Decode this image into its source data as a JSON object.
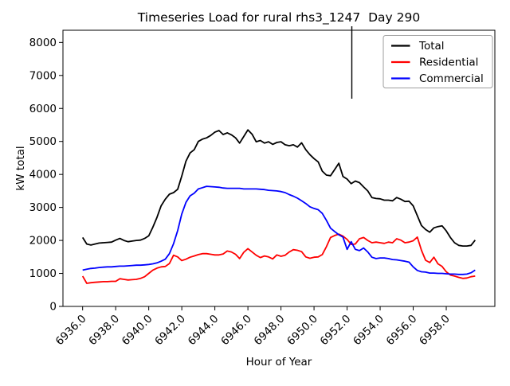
{
  "chart_data": {
    "type": "line",
    "title": "Timeseries Load for rural rhs3_1247  Day 290",
    "xlabel": "Hour of Year",
    "ylabel": "kW total",
    "xlim": [
      6934.81,
      6960.94
    ],
    "ylim": [
      0,
      8370
    ],
    "grid": false,
    "legend": {
      "position": "upper right",
      "entries": [
        "Total",
        "Residential",
        "Commercial"
      ]
    },
    "xticks": [
      6936,
      6938,
      6940,
      6942,
      6944,
      6946,
      6948,
      6950,
      6952,
      6954,
      6956,
      6958
    ],
    "xtick_labels": [
      "6936.0",
      "6938.0",
      "6940.0",
      "6942.0",
      "6944.0",
      "6946.0",
      "6948.0",
      "6950.0",
      "6952.0",
      "6954.0",
      "6956.0",
      "6958.0"
    ],
    "yticks": [
      0,
      1000,
      2000,
      3000,
      4000,
      5000,
      6000,
      7000,
      8000
    ],
    "ytick_labels": [
      "0",
      "1000",
      "2000",
      "3000",
      "4000",
      "5000",
      "6000",
      "7000",
      "8000"
    ],
    "x": [
      6936.0,
      6936.25,
      6936.5,
      6936.75,
      6937.0,
      6937.25,
      6937.5,
      6937.75,
      6938.0,
      6938.25,
      6938.5,
      6938.75,
      6939.0,
      6939.25,
      6939.5,
      6939.75,
      6940.0,
      6940.25,
      6940.5,
      6940.75,
      6941.0,
      6941.25,
      6941.5,
      6941.75,
      6942.0,
      6942.25,
      6942.5,
      6942.75,
      6943.0,
      6943.25,
      6943.5,
      6943.75,
      6944.0,
      6944.25,
      6944.5,
      6944.75,
      6945.0,
      6945.25,
      6945.5,
      6945.75,
      6946.0,
      6946.25,
      6946.5,
      6946.75,
      6947.0,
      6947.25,
      6947.5,
      6947.75,
      6948.0,
      6948.25,
      6948.5,
      6948.75,
      6949.0,
      6949.25,
      6949.5,
      6949.75,
      6950.0,
      6950.25,
      6950.5,
      6950.75,
      6951.0,
      6951.25,
      6951.5,
      6951.75,
      6952.0,
      6952.25,
      6952.5,
      6952.75,
      6953.0,
      6953.25,
      6953.5,
      6953.75,
      6954.0,
      6954.25,
      6954.5,
      6954.75,
      6955.0,
      6955.25,
      6955.5,
      6955.75,
      6956.0,
      6956.25,
      6956.5,
      6956.75,
      6957.0,
      6957.25,
      6957.5,
      6957.75,
      6958.0,
      6958.25,
      6958.5,
      6958.75,
      6959.0,
      6959.25,
      6959.5,
      6959.75
    ],
    "series": [
      {
        "name": "Total",
        "color": "#000000",
        "values": [
          2090,
          1890,
          1860,
          1890,
          1920,
          1930,
          1940,
          1950,
          2010,
          2060,
          2000,
          1960,
          1980,
          2000,
          2010,
          2060,
          2140,
          2400,
          2700,
          3050,
          3250,
          3400,
          3450,
          3550,
          3950,
          4400,
          4650,
          4750,
          5000,
          5070,
          5110,
          5180,
          5280,
          5330,
          5210,
          5260,
          5200,
          5110,
          4950,
          5150,
          5350,
          5220,
          4990,
          5030,
          4950,
          4990,
          4910,
          4970,
          4990,
          4900,
          4870,
          4900,
          4830,
          4960,
          4750,
          4600,
          4480,
          4380,
          4100,
          3980,
          3960,
          4150,
          4340,
          3940,
          3860,
          3720,
          3800,
          3750,
          3620,
          3500,
          3300,
          3270,
          3260,
          3220,
          3220,
          3200,
          3300,
          3250,
          3180,
          3190,
          3050,
          2750,
          2450,
          2330,
          2250,
          2380,
          2420,
          2440,
          2290,
          2090,
          1930,
          1850,
          1830,
          1830,
          1850,
          2010
        ]
      },
      {
        "name": "Residential",
        "color": "#ff0000",
        "values": [
          920,
          700,
          720,
          730,
          740,
          750,
          750,
          760,
          760,
          840,
          820,
          800,
          810,
          820,
          850,
          900,
          1000,
          1100,
          1160,
          1200,
          1210,
          1300,
          1550,
          1500,
          1390,
          1430,
          1490,
          1530,
          1570,
          1600,
          1600,
          1580,
          1560,
          1560,
          1590,
          1680,
          1650,
          1580,
          1450,
          1640,
          1750,
          1650,
          1550,
          1480,
          1530,
          1500,
          1440,
          1560,
          1520,
          1550,
          1650,
          1720,
          1700,
          1660,
          1500,
          1460,
          1490,
          1500,
          1570,
          1810,
          2090,
          2150,
          2190,
          2130,
          2030,
          1880,
          1890,
          2050,
          2090,
          2000,
          1930,
          1950,
          1930,
          1910,
          1950,
          1930,
          2050,
          2010,
          1930,
          1950,
          1990,
          2100,
          1700,
          1400,
          1330,
          1490,
          1290,
          1210,
          1050,
          950,
          920,
          880,
          850,
          860,
          900,
          920
        ]
      },
      {
        "name": "Commercial",
        "color": "#0000ff",
        "values": [
          1100,
          1130,
          1150,
          1160,
          1180,
          1190,
          1200,
          1200,
          1210,
          1220,
          1220,
          1230,
          1240,
          1250,
          1250,
          1260,
          1270,
          1290,
          1320,
          1370,
          1430,
          1600,
          1900,
          2300,
          2800,
          3150,
          3350,
          3430,
          3560,
          3600,
          3640,
          3630,
          3620,
          3610,
          3590,
          3580,
          3580,
          3580,
          3580,
          3560,
          3560,
          3560,
          3560,
          3550,
          3540,
          3520,
          3510,
          3500,
          3480,
          3450,
          3390,
          3340,
          3280,
          3200,
          3120,
          3020,
          2970,
          2930,
          2820,
          2610,
          2370,
          2270,
          2170,
          2100,
          1730,
          1960,
          1730,
          1690,
          1770,
          1650,
          1490,
          1450,
          1470,
          1470,
          1450,
          1420,
          1410,
          1390,
          1370,
          1340,
          1200,
          1090,
          1050,
          1040,
          1010,
          1010,
          1000,
          1000,
          990,
          980,
          980,
          970,
          970,
          980,
          1020,
          1100
        ]
      }
    ]
  }
}
